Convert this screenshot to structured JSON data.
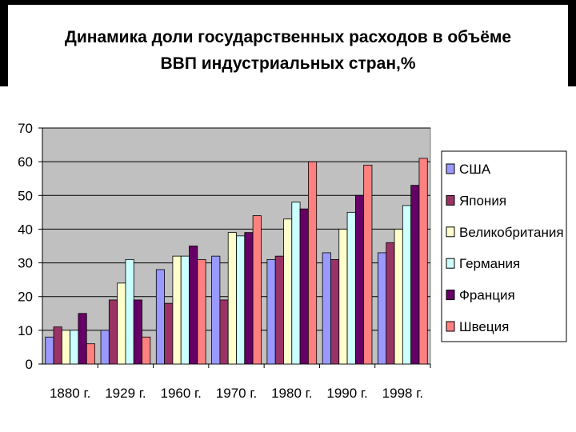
{
  "chart_data": {
    "type": "bar",
    "title_lines": [
      "Динамика доли государственных расходов в объёме",
      "ВВП индустриальных стран,%"
    ],
    "categories": [
      "1880 г.",
      "1929 г.",
      "1960 г.",
      "1970 г.",
      "1980 г.",
      "1990 г.",
      "1998 г."
    ],
    "ylim": [
      0,
      70
    ],
    "yticks": [
      0,
      10,
      20,
      30,
      40,
      50,
      60,
      70
    ],
    "grid": true,
    "legend_position": "right",
    "series": [
      {
        "name": "США",
        "color": "#9999FF",
        "values": [
          8,
          10,
          28,
          32,
          31,
          33,
          33
        ]
      },
      {
        "name": "Япония",
        "color": "#993366",
        "values": [
          11,
          19,
          18,
          19,
          32,
          31,
          36
        ]
      },
      {
        "name": "Великобритания",
        "color": "#FFFFCC",
        "values": [
          10,
          24,
          32,
          39,
          43,
          40,
          40
        ]
      },
      {
        "name": "Германия",
        "color": "#CCFFFF",
        "values": [
          10,
          31,
          32,
          38,
          48,
          45,
          47
        ]
      },
      {
        "name": "Франция",
        "color": "#660066",
        "values": [
          15,
          19,
          35,
          39,
          46,
          50,
          53
        ]
      },
      {
        "name": "Швеция",
        "color": "#FF8080",
        "values": [
          6,
          8,
          31,
          44,
          60,
          59,
          61
        ]
      }
    ]
  },
  "colors": {
    "plot_background": "#C0C0C0",
    "bar_outline": "#000000"
  }
}
